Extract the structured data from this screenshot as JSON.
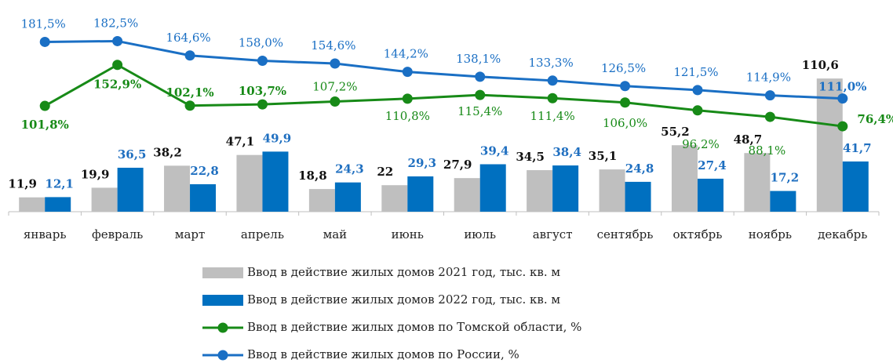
{
  "chart_data": {
    "type": "bar",
    "categories": [
      "январь",
      "февраль",
      "март",
      "апрель",
      "май",
      "июнь",
      "июль",
      "август",
      "сентябрь",
      "октябрь",
      "ноябрь",
      "декабрь"
    ],
    "ylim": [
      0,
      140
    ],
    "y2lim": [
      -30,
      180
    ],
    "series": [
      {
        "name": "Ввод в действие жилых домов 2021 год, тыс. кв. м",
        "type": "bar",
        "color": "#bfbfbf",
        "values": [
          11.9,
          19.9,
          38.2,
          47.1,
          18.8,
          22,
          27.9,
          34.5,
          35.1,
          55.2,
          48.7,
          110.6
        ],
        "value_labels": [
          "11,9",
          "19,9",
          "38,2",
          "47,1",
          "18,8",
          "22",
          "27,9",
          "34,5",
          "35,1",
          "55,2",
          "48,7",
          "110,6"
        ]
      },
      {
        "name": "Ввод в действие жилых домов 2022 год, тыс. кв. м",
        "type": "bar",
        "color": "#0070c0",
        "values": [
          12.1,
          36.5,
          22.8,
          49.9,
          24.3,
          29.3,
          39.4,
          38.4,
          24.8,
          27.4,
          17.2,
          41.7
        ],
        "value_labels": [
          "12,1",
          "36,5",
          "22,8",
          "49,9",
          "24,3",
          "29,3",
          "39,4",
          "38,4",
          "24,8",
          "27,4",
          "17,2",
          "41,7"
        ]
      },
      {
        "name": "Ввод в действие жилых домов по Томской области, %",
        "type": "line",
        "axis": "y2",
        "color": "#178a17",
        "values": [
          101.8,
          152.9,
          102.1,
          103.7,
          107.2,
          110.8,
          115.4,
          111.4,
          106.0,
          96.2,
          88.1,
          76.4
        ],
        "value_labels": [
          "101,8%",
          "152,9%",
          "102,1%",
          "103,7%",
          "107,2%",
          "110,8%",
          "115,4%",
          "111,4%",
          "106,0%",
          "96,2%",
          "88,1%",
          "76,4%"
        ]
      },
      {
        "name": "Ввод в действие жилых домов по России, %",
        "type": "line",
        "axis": "y2",
        "color": "#1a6fc4",
        "values": [
          181.5,
          182.5,
          164.6,
          158.0,
          154.6,
          144.2,
          138.1,
          133.3,
          126.5,
          121.5,
          114.9,
          111.0
        ],
        "value_labels": [
          "181,5%",
          "182,5%",
          "164,6%",
          "158,0%",
          "154,6%",
          "144,2%",
          "138,1%",
          "133,3%",
          "126,5%",
          "121,5%",
          "114,9%",
          "111,0%"
        ]
      }
    ]
  }
}
